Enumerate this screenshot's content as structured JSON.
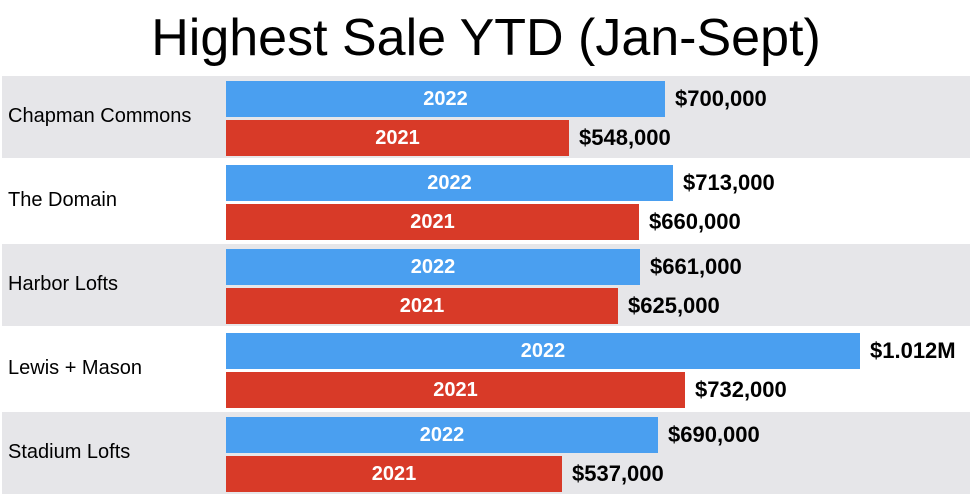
{
  "chart_data": {
    "type": "bar",
    "title": "Highest Sale YTD (Jan-Sept)",
    "orientation": "horizontal",
    "categories": [
      "Chapman Commons",
      "The Domain",
      "Harbor Lofts",
      "Lewis + Mason",
      "Stadium Lofts"
    ],
    "series": [
      {
        "name": "2022",
        "color": "#4a9ff0",
        "values": [
          700000,
          713000,
          661000,
          1012000,
          690000
        ],
        "labels": [
          "$700,000",
          "$713,000",
          "$661,000",
          "$1.012M",
          "$690,000"
        ]
      },
      {
        "name": "2021",
        "color": "#d83a28",
        "values": [
          548000,
          660000,
          625000,
          732000,
          537000
        ],
        "labels": [
          "$548,000",
          "$660,000",
          "$625,000",
          "$732,000",
          "$537,000"
        ]
      }
    ],
    "xlim": [
      0,
      1012000
    ],
    "grid": false,
    "row_shading": true
  }
}
